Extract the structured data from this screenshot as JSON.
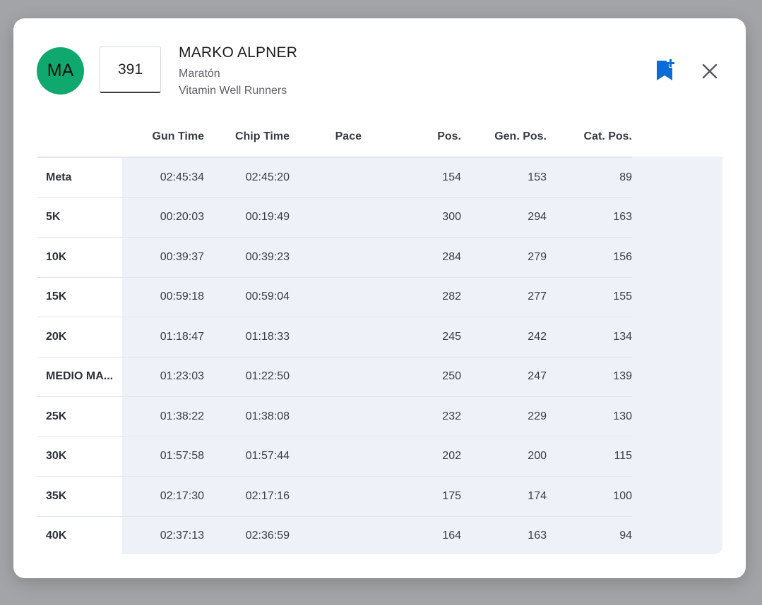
{
  "athlete": {
    "initials": "MA",
    "bib": "391",
    "name": "MARKO ALPNER",
    "race": "Maratón",
    "club": "Vitamin Well Runners"
  },
  "colors": {
    "avatar": "#0fa86e",
    "accent": "#0a6cd6",
    "row_shade": "#eef1f8"
  },
  "icons": {
    "bookmark": "bookmark-add-icon",
    "close": "close-icon"
  },
  "table": {
    "headers": [
      "",
      "Gun Time",
      "Chip Time",
      "Pace",
      "Pos.",
      "Gen. Pos.",
      "Cat. Pos."
    ],
    "rows": [
      [
        "Meta",
        "02:45:34",
        "02:45:20",
        "",
        "154",
        "153",
        "89"
      ],
      [
        "5K",
        "00:20:03",
        "00:19:49",
        "",
        "300",
        "294",
        "163"
      ],
      [
        "10K",
        "00:39:37",
        "00:39:23",
        "",
        "284",
        "279",
        "156"
      ],
      [
        "15K",
        "00:59:18",
        "00:59:04",
        "",
        "282",
        "277",
        "155"
      ],
      [
        "20K",
        "01:18:47",
        "01:18:33",
        "",
        "245",
        "242",
        "134"
      ],
      [
        "MEDIO MA...",
        "01:23:03",
        "01:22:50",
        "",
        "250",
        "247",
        "139"
      ],
      [
        "25K",
        "01:38:22",
        "01:38:08",
        "",
        "232",
        "229",
        "130"
      ],
      [
        "30K",
        "01:57:58",
        "01:57:44",
        "",
        "202",
        "200",
        "115"
      ],
      [
        "35K",
        "02:17:30",
        "02:17:16",
        "",
        "175",
        "174",
        "100"
      ],
      [
        "40K",
        "02:37:13",
        "02:36:59",
        "",
        "164",
        "163",
        "94"
      ]
    ]
  }
}
